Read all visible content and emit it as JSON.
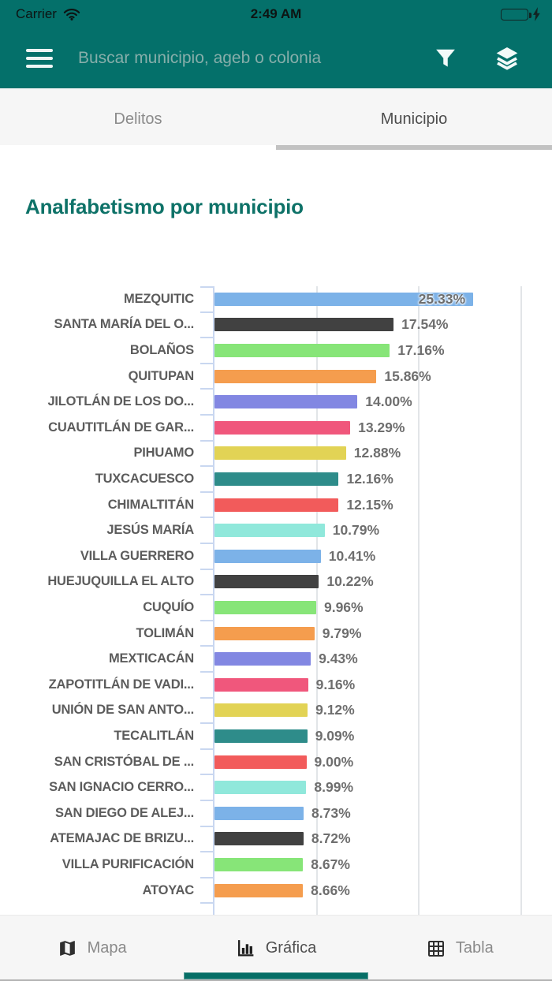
{
  "status_bar": {
    "carrier": "Carrier",
    "time": "2:49 AM",
    "battery_color": "#57d75e"
  },
  "header": {
    "background_color": "#04706a",
    "search_placeholder": "Buscar municipio, ageb o colonia"
  },
  "tabs": [
    {
      "label": "Delitos",
      "active": false
    },
    {
      "label": "Municipio",
      "active": true
    }
  ],
  "page": {
    "title": "Analfabetismo por municipio",
    "title_color": "#0e7268"
  },
  "chart_data": {
    "type": "bar",
    "orientation": "horizontal",
    "title": "Analfabetismo por municipio",
    "unit": "percent",
    "categories": [
      "MEZQUITIC",
      "SANTA MARÍA DEL O...",
      "BOLAÑOS",
      "QUITUPAN",
      "JILOTLÁN DE LOS DO...",
      "CUAUTITLÁN DE GAR...",
      "PIHUAMO",
      "TUXCACUESCO",
      "CHIMALTITÁN",
      "JESÚS MARÍA",
      "VILLA GUERRERO",
      "HUEJUQUILLA EL ALTO",
      "CUQUÍO",
      "TOLIMÁN",
      "MEXTICACÁN",
      "ZAPOTITLÁN DE VADI...",
      "UNIÓN DE SAN ANTO...",
      "TECALITLÁN",
      "SAN CRISTÓBAL DE ...",
      "SAN IGNACIO CERRO...",
      "SAN DIEGO DE ALEJ...",
      "ATEMAJAC DE BRIZU...",
      "VILLA PURIFICACIÓN",
      "ATOYAC"
    ],
    "values": [
      25.33,
      17.54,
      17.16,
      15.86,
      14.0,
      13.29,
      12.88,
      12.16,
      12.15,
      10.79,
      10.41,
      10.22,
      9.96,
      9.79,
      9.43,
      9.16,
      9.12,
      9.09,
      9.0,
      8.99,
      8.73,
      8.72,
      8.67,
      8.66
    ],
    "value_labels": [
      "25.33%",
      "17.54%",
      "17.16%",
      "15.86%",
      "14.00%",
      "13.29%",
      "12.88%",
      "12.16%",
      "12.15%",
      "10.79%",
      "10.41%",
      "10.22%",
      "9.96%",
      "9.79%",
      "9.43%",
      "9.16%",
      "9.12%",
      "9.09%",
      "9.00%",
      "8.99%",
      "8.73%",
      "8.72%",
      "8.67%",
      "8.66%"
    ],
    "palette": [
      "#7cb2e8",
      "#414141",
      "#87e578",
      "#f59d4e",
      "#8287e2",
      "#f0577c",
      "#e2d355",
      "#2e8c8a",
      "#f25b5b",
      "#90e8db"
    ],
    "xlim": [
      0,
      32.3
    ],
    "gridline_values": [
      10,
      20,
      30
    ],
    "grid": "vertical-only",
    "legend": "none",
    "axis_color": "#c9d7f0",
    "gridline_color": "#e2e5e8",
    "category_label_color": "#5c5c5c",
    "value_label_color": "#6e6e6e",
    "first_value_label_position": "inside-bar-end"
  },
  "bottom_nav": {
    "items": [
      {
        "label": "Mapa",
        "icon": "map-icon",
        "active": false
      },
      {
        "label": "Gráfica",
        "icon": "bar-chart-icon",
        "active": true
      },
      {
        "label": "Tabla",
        "icon": "table-icon",
        "active": false
      }
    ],
    "indicator_color": "#066e66"
  }
}
